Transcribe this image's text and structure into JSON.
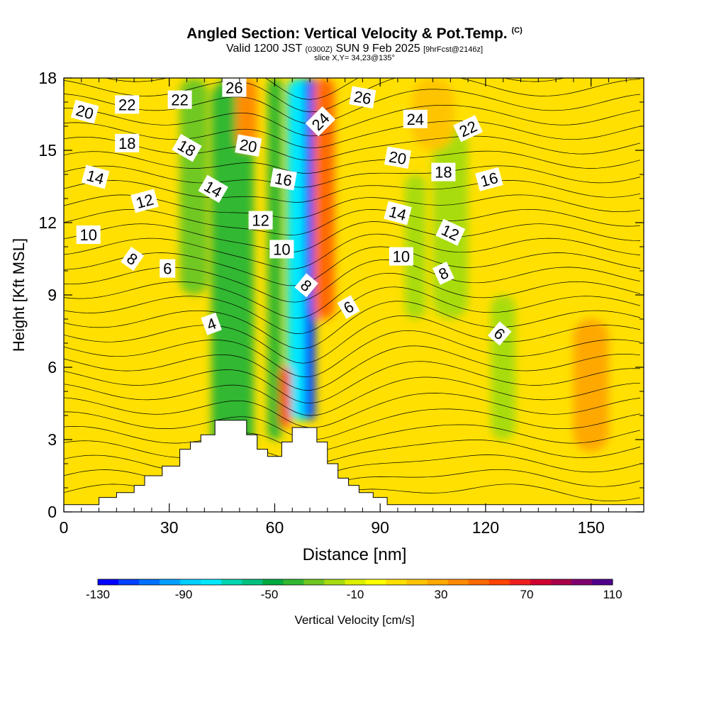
{
  "title": {
    "main": "Angled Section: Vertical Velocity & Pot.Temp.",
    "main_unit": "(C)",
    "valid_prefix": "Valid 1200 JST",
    "valid_utc": "(0300Z)",
    "valid_date": "SUN 9 Feb 2025",
    "forecast": "[9hrFcst@2146z]",
    "slice": "slice X,Y= 34,23@135°"
  },
  "chart_data": {
    "type": "heatmap",
    "xlabel": "Distance [nm]",
    "ylabel": "Height [Kft MSL]",
    "xlim": [
      0,
      165
    ],
    "ylim": [
      0,
      18
    ],
    "x_ticks": [
      0,
      30,
      60,
      90,
      120,
      150
    ],
    "y_ticks": [
      0,
      3,
      6,
      9,
      12,
      15,
      18
    ],
    "colorbar": {
      "label": "Vertical Velocity [cm/s]",
      "tick_labels": [
        "-130",
        "-90",
        "-50",
        "-10",
        "30",
        "70",
        "110"
      ],
      "range": [
        -130,
        110
      ],
      "step": 10,
      "colors": [
        "#0000ff",
        "#0040ff",
        "#0070ff",
        "#00a0ff",
        "#00d0ff",
        "#00e8ff",
        "#00d6b0",
        "#00c080",
        "#00aa40",
        "#30b830",
        "#70c820",
        "#a8dc10",
        "#dcf000",
        "#ffff00",
        "#ffe000",
        "#ffc400",
        "#ffa800",
        "#ff8c00",
        "#ff6a00",
        "#ff4400",
        "#f02020",
        "#d00030",
        "#a8004a",
        "#800070",
        "#50008c"
      ]
    },
    "terrain_profile": [
      [
        0,
        0.3
      ],
      [
        10,
        0.3
      ],
      [
        10,
        0.6
      ],
      [
        15,
        0.6
      ],
      [
        15,
        0.8
      ],
      [
        20,
        0.8
      ],
      [
        20,
        1.1
      ],
      [
        23,
        1.1
      ],
      [
        23,
        1.5
      ],
      [
        28,
        1.5
      ],
      [
        28,
        1.9
      ],
      [
        33,
        1.9
      ],
      [
        33,
        2.6
      ],
      [
        36,
        2.6
      ],
      [
        36,
        2.9
      ],
      [
        39,
        2.9
      ],
      [
        39,
        3.2
      ],
      [
        43,
        3.2
      ],
      [
        43,
        3.8
      ],
      [
        52,
        3.8
      ],
      [
        52,
        3.2
      ],
      [
        55,
        3.2
      ],
      [
        55,
        2.6
      ],
      [
        58,
        2.6
      ],
      [
        58,
        2.3
      ],
      [
        62,
        2.3
      ],
      [
        62,
        2.9
      ],
      [
        65,
        2.9
      ],
      [
        65,
        3.5
      ],
      [
        72,
        3.5
      ],
      [
        72,
        2.9
      ],
      [
        75,
        2.9
      ],
      [
        75,
        2.0
      ],
      [
        78,
        2.0
      ],
      [
        78,
        1.4
      ],
      [
        81,
        1.4
      ],
      [
        81,
        1.1
      ],
      [
        84,
        1.1
      ],
      [
        84,
        0.8
      ],
      [
        88,
        0.8
      ],
      [
        88,
        0.6
      ],
      [
        92,
        0.6
      ],
      [
        92,
        0.3
      ],
      [
        165,
        0.3
      ]
    ],
    "velocity_features": [
      {
        "x": 48,
        "y": [
          2,
          18
        ],
        "w": 12,
        "value": -40
      },
      {
        "x": 60,
        "y": [
          3,
          18
        ],
        "w": 4,
        "value": -35
      },
      {
        "x": 67,
        "y": [
          3.8,
          18
        ],
        "w": 7,
        "value": -80
      },
      {
        "x": 70,
        "y": [
          3.8,
          18
        ],
        "w": 3,
        "value": -120
      },
      {
        "x": 63,
        "y": [
          3.5,
          6
        ],
        "w": 3,
        "value": 60
      },
      {
        "x": 74,
        "y": [
          8,
          18
        ],
        "w": 6,
        "value": 50
      },
      {
        "x": 52,
        "y": [
          15,
          18
        ],
        "w": 6,
        "value": 40
      },
      {
        "x": 150,
        "y": [
          2.5,
          8
        ],
        "w": 10,
        "value": 35
      },
      {
        "x": 20,
        "y": [
          0.5,
          10
        ],
        "w": 14,
        "value": 15
      },
      {
        "x": 110,
        "y": [
          8,
          16
        ],
        "w": 10,
        "value": -15
      },
      {
        "x": 125,
        "y": [
          3,
          9
        ],
        "w": 7,
        "value": -20
      },
      {
        "x": 100,
        "y": [
          8,
          14
        ],
        "w": 6,
        "value": -12
      },
      {
        "x": 37,
        "y": [
          9,
          18
        ],
        "w": 8,
        "value": -30
      },
      {
        "x": 105,
        "y": [
          15,
          18
        ],
        "w": 12,
        "value": 25
      }
    ],
    "isotherm_labels": [
      {
        "text": "20",
        "x": 6,
        "y": 16.6,
        "rot": 15
      },
      {
        "text": "22",
        "x": 18,
        "y": 16.9,
        "rot": 0
      },
      {
        "text": "22",
        "x": 33,
        "y": 17.1,
        "rot": 0
      },
      {
        "text": "26",
        "x": 48.5,
        "y": 17.6,
        "rot": 0
      },
      {
        "text": "26",
        "x": 85,
        "y": 17.2,
        "rot": 10
      },
      {
        "text": "18",
        "x": 18,
        "y": 15.3,
        "rot": 0
      },
      {
        "text": "18",
        "x": 35,
        "y": 15.1,
        "rot": 30
      },
      {
        "text": "20",
        "x": 52.5,
        "y": 15.2,
        "rot": 10
      },
      {
        "text": "24",
        "x": 73,
        "y": 16.2,
        "rot": -45
      },
      {
        "text": "24",
        "x": 100,
        "y": 16.3,
        "rot": 0
      },
      {
        "text": "22",
        "x": 115,
        "y": 15.9,
        "rot": -25
      },
      {
        "text": "14",
        "x": 9,
        "y": 13.9,
        "rot": 15
      },
      {
        "text": "20",
        "x": 95,
        "y": 14.7,
        "rot": 10
      },
      {
        "text": "18",
        "x": 108,
        "y": 14.1,
        "rot": 0
      },
      {
        "text": "16",
        "x": 62.5,
        "y": 13.8,
        "rot": 10
      },
      {
        "text": "16",
        "x": 121,
        "y": 13.8,
        "rot": -15
      },
      {
        "text": "14",
        "x": 42.5,
        "y": 13.4,
        "rot": 30
      },
      {
        "text": "12",
        "x": 23,
        "y": 12.9,
        "rot": -15
      },
      {
        "text": "14",
        "x": 95,
        "y": 12.4,
        "rot": 15
      },
      {
        "text": "12",
        "x": 56,
        "y": 12.1,
        "rot": 0
      },
      {
        "text": "12",
        "x": 110,
        "y": 11.6,
        "rot": 25
      },
      {
        "text": "10",
        "x": 7,
        "y": 11.5,
        "rot": 0
      },
      {
        "text": "10",
        "x": 62,
        "y": 10.9,
        "rot": 0
      },
      {
        "text": "10",
        "x": 96,
        "y": 10.6,
        "rot": 0
      },
      {
        "text": "8",
        "x": 19.5,
        "y": 10.5,
        "rot": 35
      },
      {
        "text": "6",
        "x": 29.5,
        "y": 10.1,
        "rot": 0
      },
      {
        "text": "8",
        "x": 108,
        "y": 9.9,
        "rot": -25
      },
      {
        "text": "8",
        "x": 69,
        "y": 9.4,
        "rot": 40
      },
      {
        "text": "6",
        "x": 81,
        "y": 8.5,
        "rot": -30
      },
      {
        "text": "4",
        "x": 42,
        "y": 7.8,
        "rot": -20
      },
      {
        "text": "6",
        "x": 124,
        "y": 7.4,
        "rot": 40
      }
    ]
  }
}
